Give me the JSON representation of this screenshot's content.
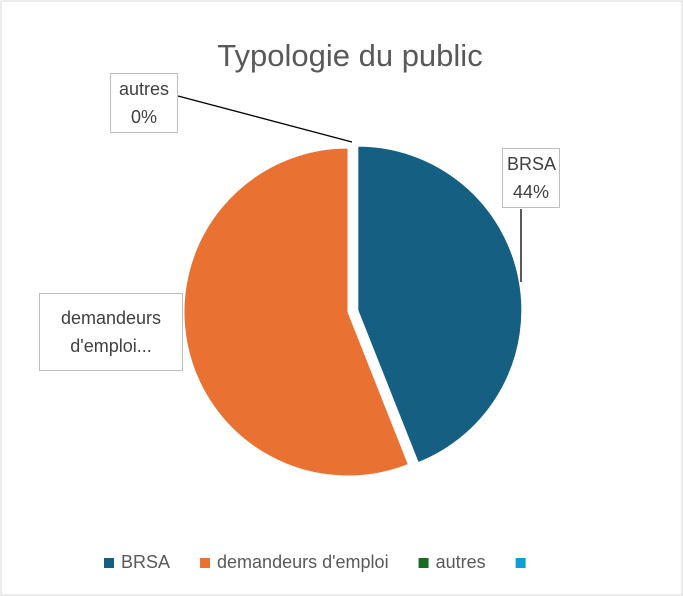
{
  "chart_data": {
    "type": "pie",
    "title": "Typologie du public",
    "categories": [
      "BRSA",
      "demandeurs d'emploi",
      "autres",
      null
    ],
    "values": [
      44,
      56,
      0,
      0
    ],
    "value_labels": [
      "44%",
      null,
      "0%",
      null
    ],
    "data_labels": [
      "BRSA",
      "demandeurs d'emploi...",
      "autres",
      null
    ],
    "colors": [
      "#156082",
      "#e97132",
      "#196b24",
      "#0f9ed5"
    ],
    "legend": "bottom"
  }
}
